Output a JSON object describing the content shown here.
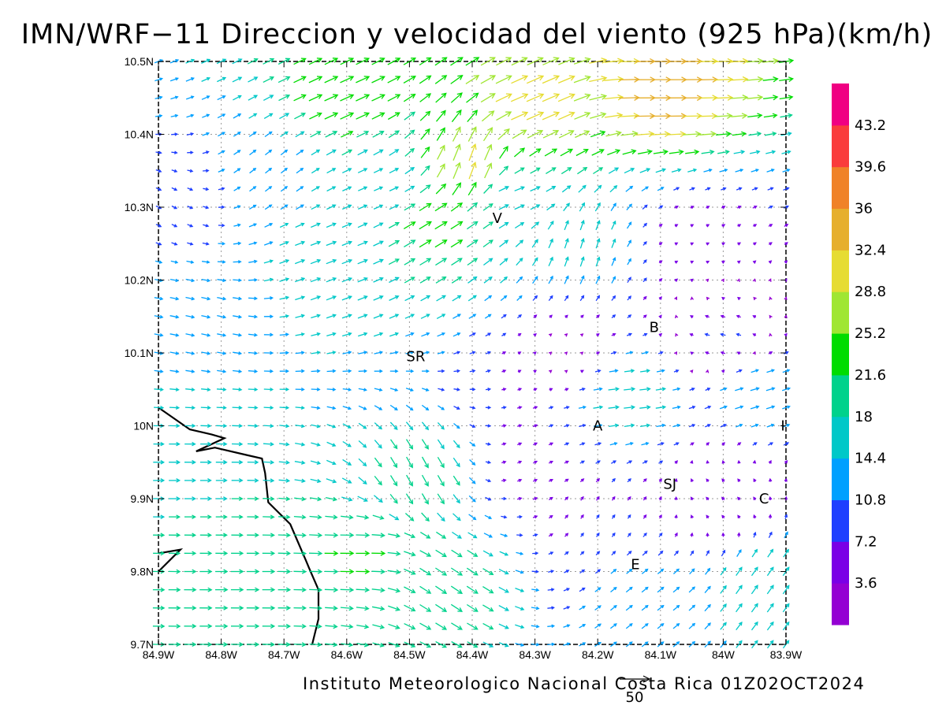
{
  "title": "IMN/WRF−11 Direccion y velocidad del viento (925 hPa)(km/h)",
  "credit": "Instituto Meteorologico Nacional Costa Rica 01Z02OCT2024",
  "reference_vector_label": "50",
  "colorbar": {
    "labels": [
      "3.6",
      "7.2",
      "10.8",
      "14.4",
      "18",
      "21.6",
      "25.2",
      "28.8",
      "32.4",
      "36",
      "39.6",
      "43.2"
    ],
    "colors": [
      "#9400d3",
      "#7a00e6",
      "#1f3fff",
      "#00a0ff",
      "#00c8c8",
      "#00d28c",
      "#00dc00",
      "#a0e632",
      "#e6dc32",
      "#e6af2d",
      "#f08228",
      "#fa3c3c",
      "#f00082"
    ]
  },
  "chart_data": {
    "type": "vector",
    "title": "IMN/WRF−11 Direccion y velocidad del viento (925 hPa)(km/h)",
    "xlabel": "",
    "ylabel": "",
    "xlim": [
      -84.9,
      -83.9
    ],
    "ylim": [
      9.7,
      10.5
    ],
    "x_ticks": [
      "84.9W",
      "84.8W",
      "84.7W",
      "84.6W",
      "84.5W",
      "84.4W",
      "84.3W",
      "84.2W",
      "84.1W",
      "84W",
      "83.9W"
    ],
    "y_ticks": [
      "9.7N",
      "9.8N",
      "9.9N",
      "10N",
      "10.1N",
      "10.2N",
      "10.3N",
      "10.4N",
      "10.5N"
    ],
    "grid": true,
    "grid_step_deg": 0.025,
    "units": "km/h",
    "coastline": [
      [
        -84.9,
        10.025
      ],
      [
        -84.85,
        9.995
      ],
      [
        -84.815,
        9.988
      ],
      [
        -84.795,
        9.983
      ],
      [
        -84.84,
        9.965
      ],
      [
        -84.81,
        9.97
      ],
      [
        -84.76,
        9.96
      ],
      [
        -84.735,
        9.955
      ],
      [
        -84.73,
        9.935
      ],
      [
        -84.725,
        9.895
      ],
      [
        -84.69,
        9.865
      ],
      [
        -84.665,
        9.815
      ],
      [
        -84.66,
        9.805
      ],
      [
        -84.645,
        9.775
      ],
      [
        -84.645,
        9.735
      ],
      [
        -84.655,
        9.7
      ]
    ],
    "coastline_secondary": [
      [
        -84.9,
        9.825
      ],
      [
        -84.865,
        9.83
      ],
      [
        -84.9,
        9.8
      ]
    ],
    "places": [
      {
        "label": "V",
        "lon": -84.36,
        "lat": 10.285
      },
      {
        "label": "B",
        "lon": -84.11,
        "lat": 10.135
      },
      {
        "label": "SR",
        "lon": -84.49,
        "lat": 10.095
      },
      {
        "label": "A",
        "lon": -84.2,
        "lat": 10.0
      },
      {
        "label": "I",
        "lon": -83.905,
        "lat": 10.0
      },
      {
        "label": "SJ",
        "lon": -84.085,
        "lat": 9.92
      },
      {
        "label": "C",
        "lon": -83.935,
        "lat": 9.9
      },
      {
        "label": "E",
        "lon": -84.14,
        "lat": 9.81
      }
    ],
    "reference_vector_speed": 50,
    "wind_centers": [
      {
        "lon": -84.83,
        "lat": 10.15,
        "u": 14,
        "v": -3
      },
      {
        "lon": -84.83,
        "lat": 9.9,
        "u": 18,
        "v": 0
      },
      {
        "lon": -84.75,
        "lat": 9.78,
        "u": 20,
        "v": 0
      },
      {
        "lon": -84.62,
        "lat": 10.23,
        "u": 16,
        "v": 6
      },
      {
        "lon": -84.55,
        "lat": 10.32,
        "u": 14,
        "v": 6
      },
      {
        "lon": -84.46,
        "lat": 10.28,
        "u": 20,
        "v": 12
      },
      {
        "lon": -84.4,
        "lat": 10.36,
        "u": 10,
        "v": 28
      },
      {
        "lon": -84.3,
        "lat": 10.44,
        "u": 28,
        "v": 12
      },
      {
        "lon": -84.1,
        "lat": 10.46,
        "u": 34,
        "v": 0
      },
      {
        "lon": -84.6,
        "lat": 10.45,
        "u": 22,
        "v": 10
      },
      {
        "lon": -84.72,
        "lat": 10.35,
        "u": 10,
        "v": 8
      },
      {
        "lon": -84.88,
        "lat": 10.3,
        "u": 8,
        "v": -4
      },
      {
        "lon": -84.48,
        "lat": 9.93,
        "u": 10,
        "v": -18
      },
      {
        "lon": -84.44,
        "lat": 9.78,
        "u": 18,
        "v": -12
      },
      {
        "lon": -84.58,
        "lat": 9.82,
        "u": 22,
        "v": 0
      },
      {
        "lon": -84.3,
        "lat": 9.95,
        "u": 6,
        "v": 3
      },
      {
        "lon": -84.25,
        "lat": 10.1,
        "u": 2,
        "v": 2
      },
      {
        "lon": -84.05,
        "lat": 10.25,
        "u": 4,
        "v": 2
      },
      {
        "lon": -84.23,
        "lat": 10.25,
        "u": 5,
        "v": 16
      },
      {
        "lon": -84.15,
        "lat": 10.04,
        "u": 18,
        "v": 2
      },
      {
        "lon": -83.95,
        "lat": 10.05,
        "u": 14,
        "v": 4
      },
      {
        "lon": -83.94,
        "lat": 9.78,
        "u": 10,
        "v": 14
      },
      {
        "lon": -84.12,
        "lat": 9.76,
        "u": 10,
        "v": 8
      },
      {
        "lon": -84.2,
        "lat": 9.88,
        "u": 4,
        "v": 6
      },
      {
        "lon": -84.0,
        "lat": 9.9,
        "u": -4,
        "v": 4
      },
      {
        "lon": -84.0,
        "lat": 10.12,
        "u": -8,
        "v": 2
      },
      {
        "lon": -84.33,
        "lat": 10.32,
        "u": 16,
        "v": 6
      }
    ]
  }
}
